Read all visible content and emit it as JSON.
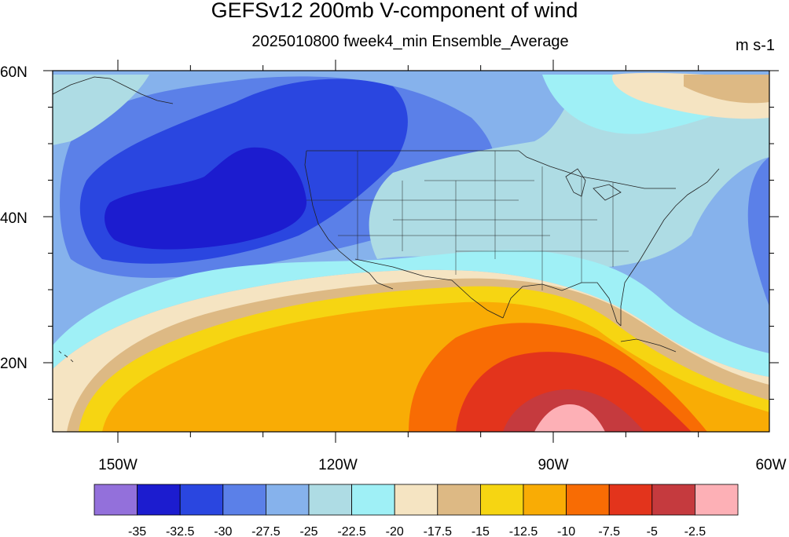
{
  "title": "GEFSv12 200mb V-component of wind",
  "subtitle": "2025010800 fweek4_min Ensemble_Average",
  "units": "m s-1",
  "lat_labels": [
    "60N",
    "40N",
    "20N"
  ],
  "lon_labels": [
    "150W",
    "120W",
    "90W",
    "60W"
  ],
  "colorbar": {
    "colors": [
      "#9370db",
      "#1c1ccf",
      "#2a46e0",
      "#5b80e8",
      "#86b2ec",
      "#aedce4",
      "#9ff0f6",
      "#f5e4c2",
      "#ddb984",
      "#f6d512",
      "#f9ac05",
      "#f86c04",
      "#e3341c",
      "#c53a3e",
      "#fdb0b6"
    ],
    "labels": [
      "-35",
      "-32.5",
      "-30",
      "-27.5",
      "-25",
      "-22.5",
      "-20",
      "-17.5",
      "-15",
      "-12.5",
      "-10",
      "-7.5",
      "-5",
      "-2.5"
    ]
  }
}
